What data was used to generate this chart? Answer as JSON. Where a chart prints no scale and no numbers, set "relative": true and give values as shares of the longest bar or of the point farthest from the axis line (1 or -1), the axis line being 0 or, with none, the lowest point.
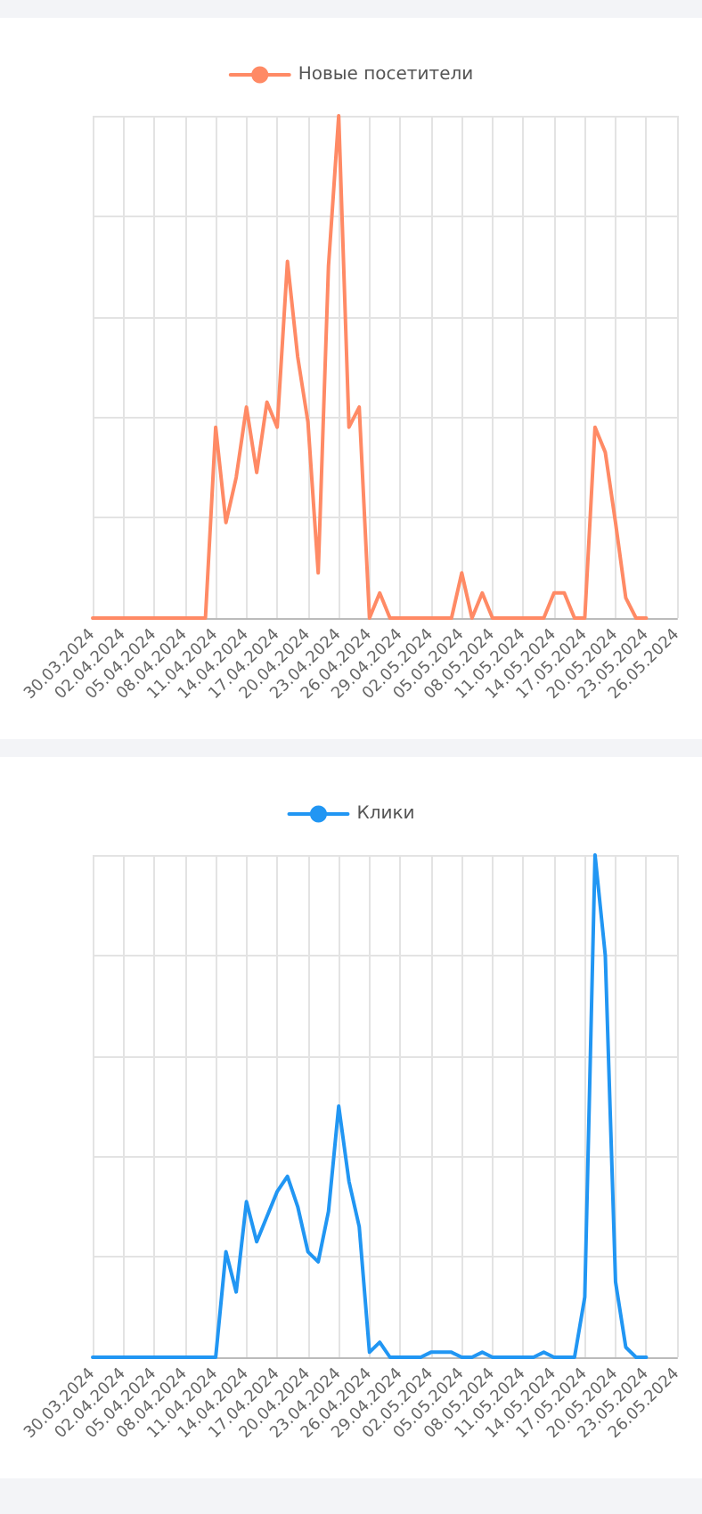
{
  "chart_data": [
    {
      "type": "line",
      "relative": true,
      "grid": true,
      "legend": "top",
      "marker": "none",
      "line_style": "solid",
      "categories": [
        "30.03.2024",
        null,
        null,
        "02.04.2024",
        null,
        null,
        "05.04.2024",
        null,
        null,
        "08.04.2024",
        null,
        null,
        "11.04.2024",
        null,
        null,
        "14.04.2024",
        null,
        null,
        "17.04.2024",
        null,
        null,
        "20.04.2024",
        null,
        null,
        "23.04.2024",
        null,
        null,
        "26.04.2024",
        null,
        null,
        "29.04.2024",
        null,
        null,
        "02.05.2024",
        null,
        null,
        "05.05.2024",
        null,
        null,
        "08.05.2024",
        null,
        null,
        "11.05.2024",
        null,
        null,
        "14.05.2024",
        null,
        null,
        "17.05.2024",
        null,
        null,
        "20.05.2024",
        null,
        null,
        "23.05.2024",
        null,
        null,
        "26.05.2024"
      ],
      "series": [
        {
          "name": "Новые посетители",
          "color": "#ff8a65",
          "values": [
            0,
            0,
            0,
            0,
            0,
            0,
            0,
            0,
            0,
            0,
            0,
            0,
            0.38,
            0.19,
            0.28,
            0.42,
            0.29,
            0.43,
            0.38,
            0.71,
            0.52,
            0.39,
            0.09,
            0.7,
            1,
            0.38,
            0.42,
            0,
            0.05,
            0,
            0,
            0,
            0,
            0,
            0,
            0,
            0.09,
            0,
            0.05,
            0,
            0,
            0,
            0,
            0,
            0,
            0.05,
            0.05,
            0,
            0,
            0.38,
            0.33,
            0.19,
            0.04,
            0,
            0,
            null,
            null,
            null
          ]
        }
      ]
    },
    {
      "type": "line",
      "relative": true,
      "grid": true,
      "legend": "top",
      "marker": "none",
      "line_style": "solid",
      "categories": [
        "30.03.2024",
        null,
        null,
        "02.04.2024",
        null,
        null,
        "05.04.2024",
        null,
        null,
        "08.04.2024",
        null,
        null,
        "11.04.2024",
        null,
        null,
        "14.04.2024",
        null,
        null,
        "17.04.2024",
        null,
        null,
        "20.04.2024",
        null,
        null,
        "23.04.2024",
        null,
        null,
        "26.04.2024",
        null,
        null,
        "29.04.2024",
        null,
        null,
        "02.05.2024",
        null,
        null,
        "05.05.2024",
        null,
        null,
        "08.05.2024",
        null,
        null,
        "11.05.2024",
        null,
        null,
        "14.05.2024",
        null,
        null,
        "17.05.2024",
        null,
        null,
        "20.05.2024",
        null,
        null,
        "23.05.2024",
        null,
        null,
        "26.05.2024"
      ],
      "series": [
        {
          "name": "Клики",
          "color": "#2196f3",
          "values": [
            0,
            0,
            0,
            0,
            0,
            0,
            0,
            0,
            0,
            0,
            0,
            0,
            0,
            0.21,
            0.13,
            0.31,
            0.23,
            0.28,
            0.33,
            0.36,
            0.3,
            0.21,
            0.19,
            0.29,
            0.5,
            0.35,
            0.26,
            0.01,
            0.03,
            0,
            0,
            0,
            0,
            0.01,
            0.01,
            0.01,
            0,
            0,
            0.01,
            0,
            0,
            0,
            0,
            0,
            0.01,
            0,
            0,
            0,
            0.12,
            1,
            0.8,
            0.15,
            0.02,
            0,
            0,
            null,
            null,
            null
          ]
        }
      ]
    }
  ]
}
